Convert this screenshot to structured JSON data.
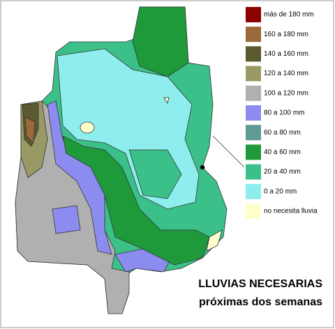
{
  "title": {
    "line1": "LLUVIAS NECESARIAS",
    "line2": "próximas dos semanas"
  },
  "legend": [
    {
      "label": "más de 180 mm",
      "color": "#8b0000"
    },
    {
      "label": "160 a 180 mm",
      "color": "#9c6a3a"
    },
    {
      "label": "140 a 160 mm",
      "color": "#5a5a2e"
    },
    {
      "label": "120 a 140 mm",
      "color": "#999966"
    },
    {
      "label": "100 a 120 mm",
      "color": "#b0b0b0"
    },
    {
      "label": "80 a 100 mm",
      "color": "#8c8cf0"
    },
    {
      "label": "60 a 80 mm",
      "color": "#5f9a94"
    },
    {
      "label": "40 a 60 mm",
      "color": "#1f9a3a"
    },
    {
      "label": "20 a 40 mm",
      "color": "#3cc08a"
    },
    {
      "label": "0 a 20 mm",
      "color": "#8eeeee"
    },
    {
      "label": "no necesita lluvia",
      "color": "#ffffcc"
    }
  ]
}
